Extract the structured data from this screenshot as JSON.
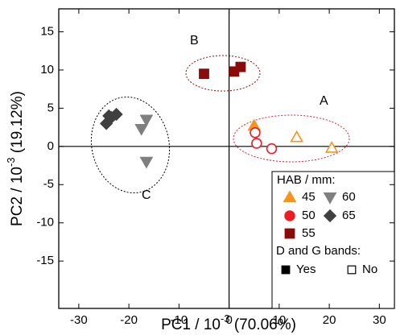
{
  "chart_data": {
    "type": "scatter",
    "x_label": {
      "text": "PC1 / 10",
      "sup": "-3",
      "rest": " (70.06%)"
    },
    "y_label": {
      "text": "PC2 / 10",
      "sup": "-3",
      "rest": " (19.12%)"
    },
    "xlim": [
      -34,
      33
    ],
    "ylim": [
      -21.2,
      18
    ],
    "xticks": [
      -30,
      -20,
      -10,
      0,
      10,
      20,
      30
    ],
    "yticks": [
      -15,
      -10,
      -5,
      0,
      5,
      10,
      15
    ],
    "series": [
      {
        "name": "45",
        "color": "#f7941d",
        "marker": "triangle-up",
        "x": [
          5,
          13.5,
          20.5
        ],
        "y": [
          2.7,
          1.2,
          -0.2
        ],
        "filled": [
          true,
          false,
          false
        ]
      },
      {
        "name": "50",
        "color": "#ee1c25",
        "marker": "circle",
        "x": [
          5.2,
          5.5,
          8.5
        ],
        "y": [
          1.8,
          0.4,
          -0.3
        ],
        "filled": [
          false,
          false,
          false
        ]
      },
      {
        "name": "55",
        "color": "#8b0a0a",
        "marker": "square",
        "x": [
          -5,
          1,
          2.3
        ],
        "y": [
          9.5,
          9.8,
          10.4
        ],
        "filled": [
          true,
          true,
          true
        ]
      },
      {
        "name": "60",
        "color": "#7f7f7f",
        "marker": "triangle-down",
        "x": [
          -16.5,
          -17.5,
          -16.5
        ],
        "y": [
          3.5,
          2.3,
          -2
        ],
        "filled": [
          true,
          true,
          true
        ]
      },
      {
        "name": "65",
        "color": "#404040",
        "marker": "diamond",
        "x": [
          -24.5,
          -23.5,
          -24,
          -22.5
        ],
        "y": [
          3,
          3.8,
          4,
          4.2
        ],
        "filled": [
          true,
          true,
          true,
          true
        ]
      }
    ],
    "legend_title": "HAB / mm:",
    "fill_legend_title": "D and G bands:",
    "fill_legend": [
      {
        "name": "Yes",
        "filled": true
      },
      {
        "name": "No",
        "filled": false
      }
    ],
    "annotations": [
      {
        "text": "A",
        "color": "#ee1c25"
      },
      {
        "text": "B",
        "color": "#8b0a0a"
      },
      {
        "text": "C",
        "color": "#000000"
      }
    ]
  }
}
